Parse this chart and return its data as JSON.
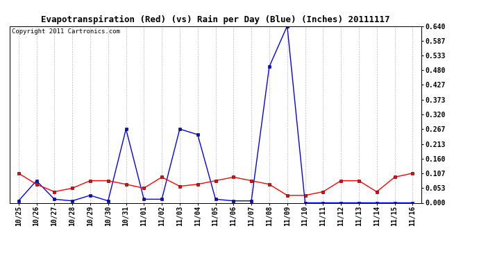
{
  "title": "Evapotranspiration (Red) (vs) Rain per Day (Blue) (Inches) 20111117",
  "copyright_text": "Copyright 2011 Cartronics.com",
  "x_labels": [
    "10/25",
    "10/26",
    "10/27",
    "10/28",
    "10/29",
    "10/30",
    "10/31",
    "11/01",
    "11/02",
    "11/03",
    "11/04",
    "11/05",
    "11/06",
    "11/07",
    "11/08",
    "11/09",
    "11/10",
    "11/11",
    "11/12",
    "11/13",
    "11/14",
    "11/15",
    "11/16"
  ],
  "red_values": [
    0.107,
    0.067,
    0.04,
    0.053,
    0.08,
    0.08,
    0.067,
    0.053,
    0.093,
    0.06,
    0.067,
    0.08,
    0.093,
    0.08,
    0.067,
    0.027,
    0.027,
    0.04,
    0.08,
    0.08,
    0.04,
    0.093,
    0.107
  ],
  "blue_values": [
    0.007,
    0.08,
    0.013,
    0.007,
    0.027,
    0.007,
    0.267,
    0.013,
    0.013,
    0.267,
    0.247,
    0.013,
    0.007,
    0.007,
    0.493,
    0.64,
    0.0,
    0.0,
    0.0,
    0.0,
    0.0,
    0.0,
    0.0
  ],
  "ylim": [
    0.0,
    0.64
  ],
  "yticks": [
    0.0,
    0.053,
    0.107,
    0.16,
    0.213,
    0.267,
    0.32,
    0.373,
    0.427,
    0.48,
    0.533,
    0.587,
    0.64
  ],
  "red_color": "#ff0000",
  "blue_color": "#0000ff",
  "bg_color": "#ffffff",
  "grid_color": "#bbbbbb",
  "title_fontsize": 9,
  "copyright_fontsize": 6.5,
  "tick_fontsize": 7
}
